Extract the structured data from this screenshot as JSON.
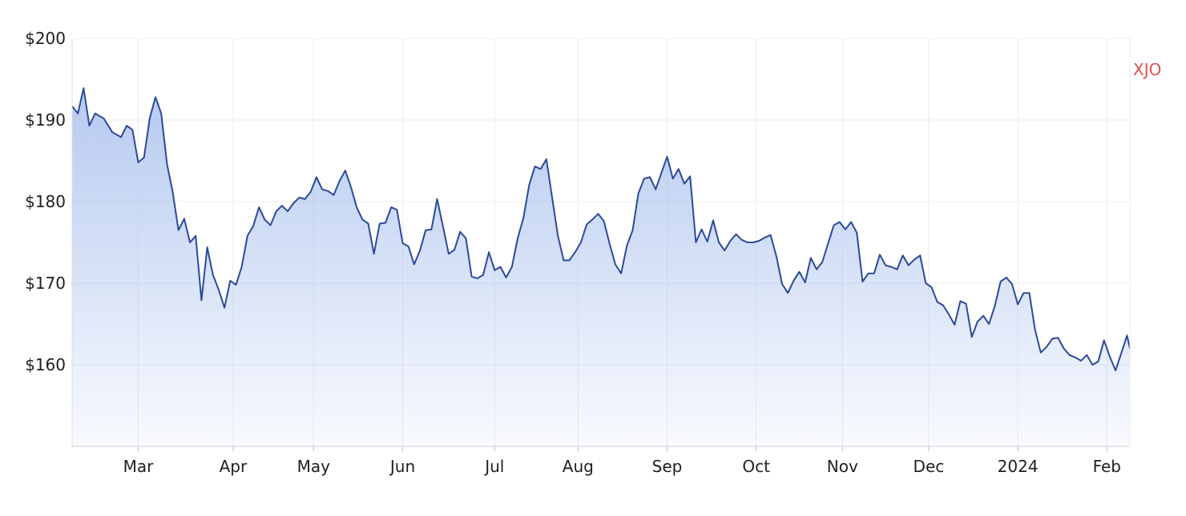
{
  "chart_data": {
    "type": "line",
    "title": "",
    "xlabel": "",
    "ylabel": "",
    "ylim": [
      150,
      200
    ],
    "y_ticks": [
      {
        "value": 200,
        "label": "$200"
      },
      {
        "value": 190,
        "label": "$190"
      },
      {
        "value": 180,
        "label": "$180"
      },
      {
        "value": 170,
        "label": "$170"
      },
      {
        "value": 160,
        "label": "$160"
      }
    ],
    "x_range": [
      "2023-02-06",
      "2024-02-09"
    ],
    "x_ticks": [
      {
        "date": "2023-03-01",
        "label": "Mar"
      },
      {
        "date": "2023-04-03",
        "label": "Apr"
      },
      {
        "date": "2023-05-01",
        "label": "May"
      },
      {
        "date": "2023-06-01",
        "label": "Jun"
      },
      {
        "date": "2023-07-03",
        "label": "Jul"
      },
      {
        "date": "2023-08-01",
        "label": "Aug"
      },
      {
        "date": "2023-09-01",
        "label": "Sep"
      },
      {
        "date": "2023-10-02",
        "label": "Oct"
      },
      {
        "date": "2023-11-01",
        "label": "Nov"
      },
      {
        "date": "2023-12-01",
        "label": "Dec"
      },
      {
        "date": "2024-01-01",
        "label": "2024"
      },
      {
        "date": "2024-02-01",
        "label": "Feb"
      }
    ],
    "grid": true,
    "series": [
      {
        "name": "",
        "color": "#2a4a9a",
        "fill": "area",
        "points": [
          [
            "2023-02-06",
            191.7
          ],
          [
            "2023-02-08",
            190.8
          ],
          [
            "2023-02-10",
            193.9
          ],
          [
            "2023-02-12",
            189.3
          ],
          [
            "2023-02-14",
            190.8
          ],
          [
            "2023-02-17",
            190.2
          ],
          [
            "2023-02-20",
            188.5
          ],
          [
            "2023-02-23",
            187.9
          ],
          [
            "2023-02-25",
            189.3
          ],
          [
            "2023-02-27",
            188.8
          ],
          [
            "2023-03-01",
            184.8
          ],
          [
            "2023-03-03",
            185.4
          ],
          [
            "2023-03-05",
            190.2
          ],
          [
            "2023-03-07",
            192.8
          ],
          [
            "2023-03-09",
            190.8
          ],
          [
            "2023-03-11",
            184.6
          ],
          [
            "2023-03-13",
            181.2
          ],
          [
            "2023-03-15",
            176.5
          ],
          [
            "2023-03-17",
            177.9
          ],
          [
            "2023-03-19",
            175.0
          ],
          [
            "2023-03-21",
            175.8
          ],
          [
            "2023-03-23",
            167.9
          ],
          [
            "2023-03-25",
            174.4
          ],
          [
            "2023-03-27",
            171.0
          ],
          [
            "2023-03-29",
            169.2
          ],
          [
            "2023-03-31",
            167.0
          ],
          [
            "2023-04-02",
            170.3
          ],
          [
            "2023-04-04",
            169.8
          ],
          [
            "2023-04-06",
            172.0
          ],
          [
            "2023-04-08",
            175.8
          ],
          [
            "2023-04-10",
            177.0
          ],
          [
            "2023-04-12",
            179.3
          ],
          [
            "2023-04-14",
            177.8
          ],
          [
            "2023-04-16",
            177.1
          ],
          [
            "2023-04-18",
            178.8
          ],
          [
            "2023-04-20",
            179.5
          ],
          [
            "2023-04-22",
            178.8
          ],
          [
            "2023-04-24",
            179.8
          ],
          [
            "2023-04-26",
            180.5
          ],
          [
            "2023-04-28",
            180.3
          ],
          [
            "2023-04-30",
            181.2
          ],
          [
            "2023-05-02",
            183.0
          ],
          [
            "2023-05-04",
            181.5
          ],
          [
            "2023-05-06",
            181.3
          ],
          [
            "2023-05-08",
            180.8
          ],
          [
            "2023-05-10",
            182.5
          ],
          [
            "2023-05-12",
            183.8
          ],
          [
            "2023-05-14",
            181.8
          ],
          [
            "2023-05-16",
            179.3
          ],
          [
            "2023-05-18",
            177.8
          ],
          [
            "2023-05-20",
            177.3
          ],
          [
            "2023-05-22",
            173.6
          ],
          [
            "2023-05-24",
            177.3
          ],
          [
            "2023-05-26",
            177.4
          ],
          [
            "2023-05-28",
            179.3
          ],
          [
            "2023-05-30",
            179.0
          ],
          [
            "2023-06-01",
            174.9
          ],
          [
            "2023-06-03",
            174.5
          ],
          [
            "2023-06-05",
            172.3
          ],
          [
            "2023-06-07",
            174.0
          ],
          [
            "2023-06-09",
            176.5
          ],
          [
            "2023-06-11",
            176.6
          ],
          [
            "2023-06-13",
            180.3
          ],
          [
            "2023-06-15",
            177.0
          ],
          [
            "2023-06-17",
            173.6
          ],
          [
            "2023-06-19",
            174.1
          ],
          [
            "2023-06-21",
            176.3
          ],
          [
            "2023-06-23",
            175.5
          ],
          [
            "2023-06-25",
            170.8
          ],
          [
            "2023-06-27",
            170.6
          ],
          [
            "2023-06-29",
            171.0
          ],
          [
            "2023-07-01",
            173.8
          ],
          [
            "2023-07-03",
            171.6
          ],
          [
            "2023-07-05",
            172.0
          ],
          [
            "2023-07-07",
            170.7
          ],
          [
            "2023-07-09",
            172.0
          ],
          [
            "2023-07-11",
            175.5
          ],
          [
            "2023-07-13",
            178.0
          ],
          [
            "2023-07-15",
            182.0
          ],
          [
            "2023-07-17",
            184.3
          ],
          [
            "2023-07-19",
            184.0
          ],
          [
            "2023-07-21",
            185.2
          ],
          [
            "2023-07-23",
            180.5
          ],
          [
            "2023-07-25",
            175.8
          ],
          [
            "2023-07-27",
            172.8
          ],
          [
            "2023-07-29",
            172.8
          ],
          [
            "2023-07-31",
            173.8
          ],
          [
            "2023-08-02",
            175.0
          ],
          [
            "2023-08-04",
            177.2
          ],
          [
            "2023-08-06",
            177.8
          ],
          [
            "2023-08-08",
            178.5
          ],
          [
            "2023-08-10",
            177.6
          ],
          [
            "2023-08-12",
            174.8
          ],
          [
            "2023-08-14",
            172.3
          ],
          [
            "2023-08-16",
            171.2
          ],
          [
            "2023-08-18",
            174.6
          ],
          [
            "2023-08-20",
            176.5
          ],
          [
            "2023-08-22",
            181.0
          ],
          [
            "2023-08-24",
            182.8
          ],
          [
            "2023-08-26",
            183.0
          ],
          [
            "2023-08-28",
            181.5
          ],
          [
            "2023-08-30",
            183.5
          ],
          [
            "2023-09-01",
            185.5
          ],
          [
            "2023-09-03",
            182.8
          ],
          [
            "2023-09-05",
            184.0
          ],
          [
            "2023-09-07",
            182.2
          ],
          [
            "2023-09-09",
            183.1
          ],
          [
            "2023-09-11",
            175.0
          ],
          [
            "2023-09-13",
            176.6
          ],
          [
            "2023-09-15",
            175.1
          ],
          [
            "2023-09-17",
            177.7
          ],
          [
            "2023-09-19",
            175.0
          ],
          [
            "2023-09-21",
            174.0
          ],
          [
            "2023-09-23",
            175.2
          ],
          [
            "2023-09-25",
            176.0
          ],
          [
            "2023-09-27",
            175.3
          ],
          [
            "2023-09-29",
            175.0
          ],
          [
            "2023-10-01",
            175.0
          ],
          [
            "2023-10-03",
            175.2
          ],
          [
            "2023-10-05",
            175.6
          ],
          [
            "2023-10-07",
            175.9
          ],
          [
            "2023-10-09",
            173.3
          ],
          [
            "2023-10-11",
            169.9
          ],
          [
            "2023-10-13",
            168.8
          ],
          [
            "2023-10-15",
            170.3
          ],
          [
            "2023-10-17",
            171.4
          ],
          [
            "2023-10-19",
            170.1
          ],
          [
            "2023-10-21",
            173.1
          ],
          [
            "2023-10-23",
            171.7
          ],
          [
            "2023-10-25",
            172.6
          ],
          [
            "2023-10-27",
            174.9
          ],
          [
            "2023-10-29",
            177.1
          ],
          [
            "2023-10-31",
            177.5
          ],
          [
            "2023-11-02",
            176.6
          ],
          [
            "2023-11-04",
            177.5
          ],
          [
            "2023-11-06",
            176.2
          ],
          [
            "2023-11-08",
            170.2
          ],
          [
            "2023-11-10",
            171.2
          ],
          [
            "2023-11-12",
            171.2
          ],
          [
            "2023-11-14",
            173.5
          ],
          [
            "2023-11-16",
            172.2
          ],
          [
            "2023-11-18",
            172.0
          ],
          [
            "2023-11-20",
            171.7
          ],
          [
            "2023-11-22",
            173.4
          ],
          [
            "2023-11-24",
            172.2
          ],
          [
            "2023-11-26",
            172.9
          ],
          [
            "2023-11-28",
            173.4
          ],
          [
            "2023-11-30",
            170.0
          ],
          [
            "2023-12-02",
            169.5
          ],
          [
            "2023-12-04",
            167.7
          ],
          [
            "2023-12-06",
            167.3
          ],
          [
            "2023-12-08",
            166.2
          ],
          [
            "2023-12-10",
            164.9
          ],
          [
            "2023-12-12",
            167.8
          ],
          [
            "2023-12-14",
            167.5
          ],
          [
            "2023-12-16",
            163.4
          ],
          [
            "2023-12-18",
            165.3
          ],
          [
            "2023-12-20",
            166.0
          ],
          [
            "2023-12-22",
            165.0
          ],
          [
            "2023-12-24",
            167.2
          ],
          [
            "2023-12-26",
            170.2
          ],
          [
            "2023-12-28",
            170.7
          ],
          [
            "2023-12-30",
            169.9
          ],
          [
            "2024-01-01",
            167.4
          ],
          [
            "2024-01-03",
            168.8
          ],
          [
            "2024-01-05",
            168.8
          ],
          [
            "2024-01-07",
            164.3
          ],
          [
            "2024-01-09",
            161.5
          ],
          [
            "2024-01-11",
            162.2
          ],
          [
            "2024-01-13",
            163.2
          ],
          [
            "2024-01-15",
            163.3
          ],
          [
            "2024-01-17",
            162.0
          ],
          [
            "2024-01-19",
            161.2
          ],
          [
            "2024-01-21",
            160.9
          ],
          [
            "2024-01-23",
            160.5
          ],
          [
            "2024-01-25",
            161.2
          ],
          [
            "2024-01-27",
            160.0
          ],
          [
            "2024-01-29",
            160.4
          ],
          [
            "2024-01-31",
            163.0
          ],
          [
            "2024-02-02",
            161.0
          ],
          [
            "2024-02-04",
            159.3
          ],
          [
            "2024-02-06",
            161.4
          ],
          [
            "2024-02-08",
            163.6
          ],
          [
            "2024-02-09",
            162.0
          ]
        ]
      },
      {
        "name": "XJO",
        "color": "#d9534f",
        "fill": "none",
        "points": []
      }
    ]
  }
}
